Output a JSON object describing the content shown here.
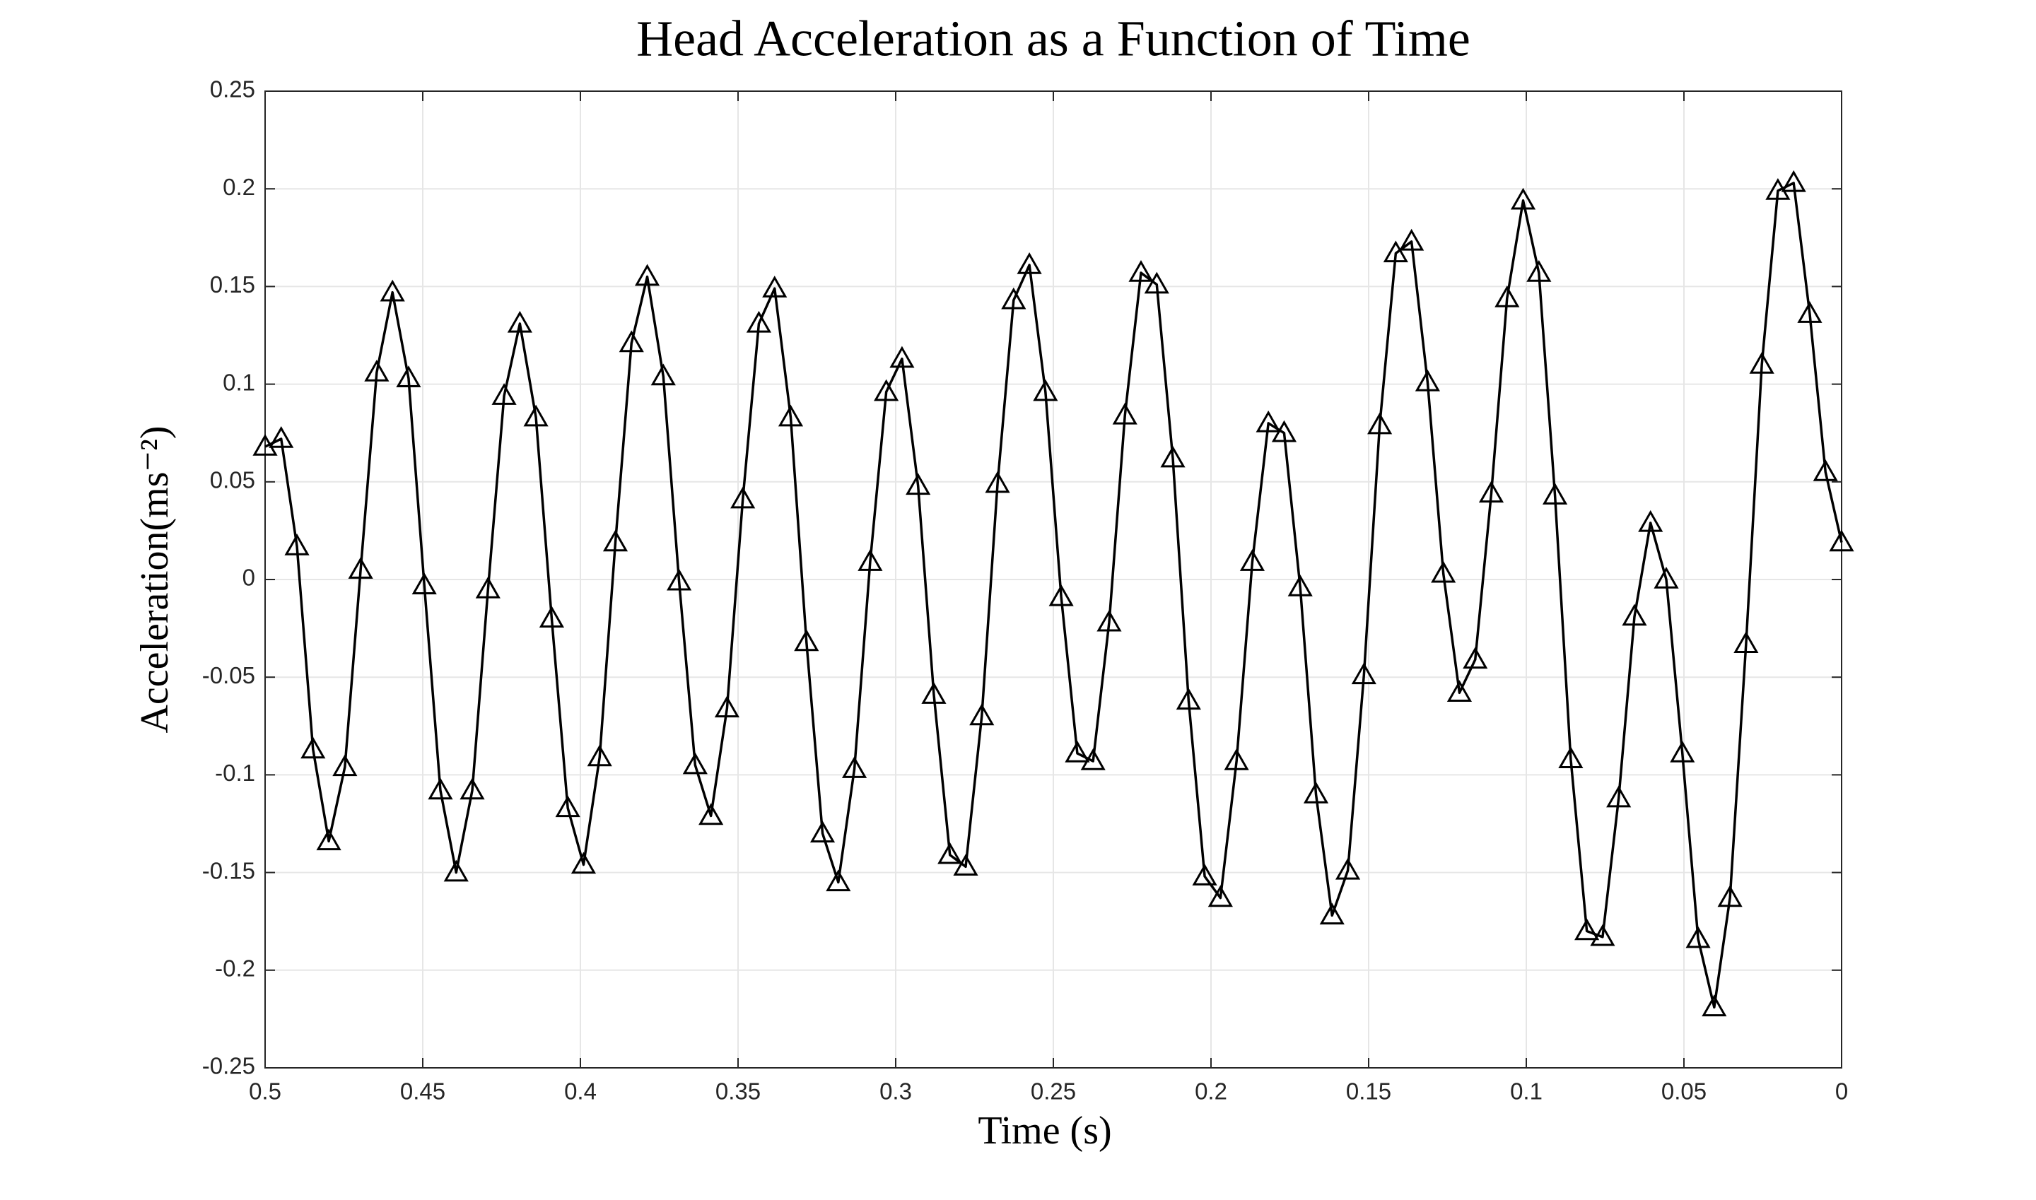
{
  "chart_data": {
    "type": "line",
    "title": "Head Acceleration as a Function of Time",
    "xlabel": "Time (s)",
    "ylabel": "Acceleration(ms⁻²)",
    "x": [
      0.5,
      0.4949,
      0.4899,
      0.4848,
      0.4798,
      0.4747,
      0.4697,
      0.4646,
      0.4596,
      0.4545,
      0.4495,
      0.4444,
      0.4394,
      0.4343,
      0.4293,
      0.4242,
      0.4192,
      0.4141,
      0.4091,
      0.404,
      0.399,
      0.3939,
      0.3889,
      0.3838,
      0.3788,
      0.3737,
      0.3687,
      0.3636,
      0.3586,
      0.3535,
      0.3485,
      0.3434,
      0.3384,
      0.3333,
      0.3283,
      0.3232,
      0.3182,
      0.3131,
      0.3081,
      0.303,
      0.298,
      0.2929,
      0.2879,
      0.2828,
      0.2778,
      0.2727,
      0.2677,
      0.2626,
      0.2576,
      0.2525,
      0.2475,
      0.2424,
      0.2374,
      0.2323,
      0.2273,
      0.2222,
      0.2172,
      0.2121,
      0.2071,
      0.202,
      0.197,
      0.1919,
      0.1869,
      0.1818,
      0.1768,
      0.1717,
      0.1667,
      0.1616,
      0.1566,
      0.1515,
      0.1465,
      0.1414,
      0.1364,
      0.1313,
      0.1263,
      0.1212,
      0.1162,
      0.1111,
      0.1061,
      0.101,
      0.096,
      0.0909,
      0.0859,
      0.0808,
      0.0758,
      0.0707,
      0.0657,
      0.0606,
      0.0556,
      0.0505,
      0.0455,
      0.0404,
      0.0354,
      0.0303,
      0.0253,
      0.0202,
      0.0152,
      0.0101,
      0.0051,
      0
    ],
    "values": [
      0.068,
      0.072,
      0.017,
      -0.087,
      -0.134,
      -0.096,
      0.005,
      0.106,
      0.147,
      0.103,
      -0.003,
      -0.108,
      -0.15,
      -0.108,
      -0.005,
      0.094,
      0.131,
      0.083,
      -0.02,
      -0.117,
      -0.146,
      -0.091,
      0.019,
      0.121,
      0.155,
      0.104,
      -0.001,
      -0.095,
      -0.121,
      -0.066,
      0.041,
      0.131,
      0.149,
      0.083,
      -0.032,
      -0.13,
      -0.155,
      -0.097,
      0.009,
      0.096,
      0.113,
      0.048,
      -0.059,
      -0.141,
      -0.147,
      -0.07,
      0.049,
      0.143,
      0.161,
      0.096,
      -0.009,
      -0.089,
      -0.093,
      -0.022,
      0.084,
      0.157,
      0.151,
      0.062,
      -0.062,
      -0.152,
      -0.163,
      -0.093,
      0.009,
      0.08,
      0.075,
      -0.004,
      -0.11,
      -0.172,
      -0.149,
      -0.049,
      0.079,
      0.167,
      0.173,
      0.101,
      0.003,
      -0.058,
      -0.041,
      0.044,
      0.144,
      0.194,
      0.157,
      0.043,
      -0.092,
      -0.18,
      -0.183,
      -0.112,
      -0.019,
      0.029,
      0.0,
      -0.089,
      -0.184,
      -0.219,
      -0.163,
      -0.033,
      0.11,
      0.199,
      0.203,
      0.136,
      0.055,
      0.019
    ],
    "color": "#000000",
    "marker": "triangle",
    "xlim": [
      0.5,
      0
    ],
    "xticks": [
      0.5,
      0.45,
      0.4,
      0.35,
      0.3,
      0.25,
      0.2,
      0.15,
      0.1,
      0.05,
      0
    ],
    "ylim": [
      -0.25,
      0.25
    ],
    "yticks": [
      -0.25,
      -0.2,
      -0.15,
      -0.1,
      -0.05,
      0,
      0.05,
      0.1,
      0.15,
      0.2,
      0.25
    ],
    "grid": true
  }
}
